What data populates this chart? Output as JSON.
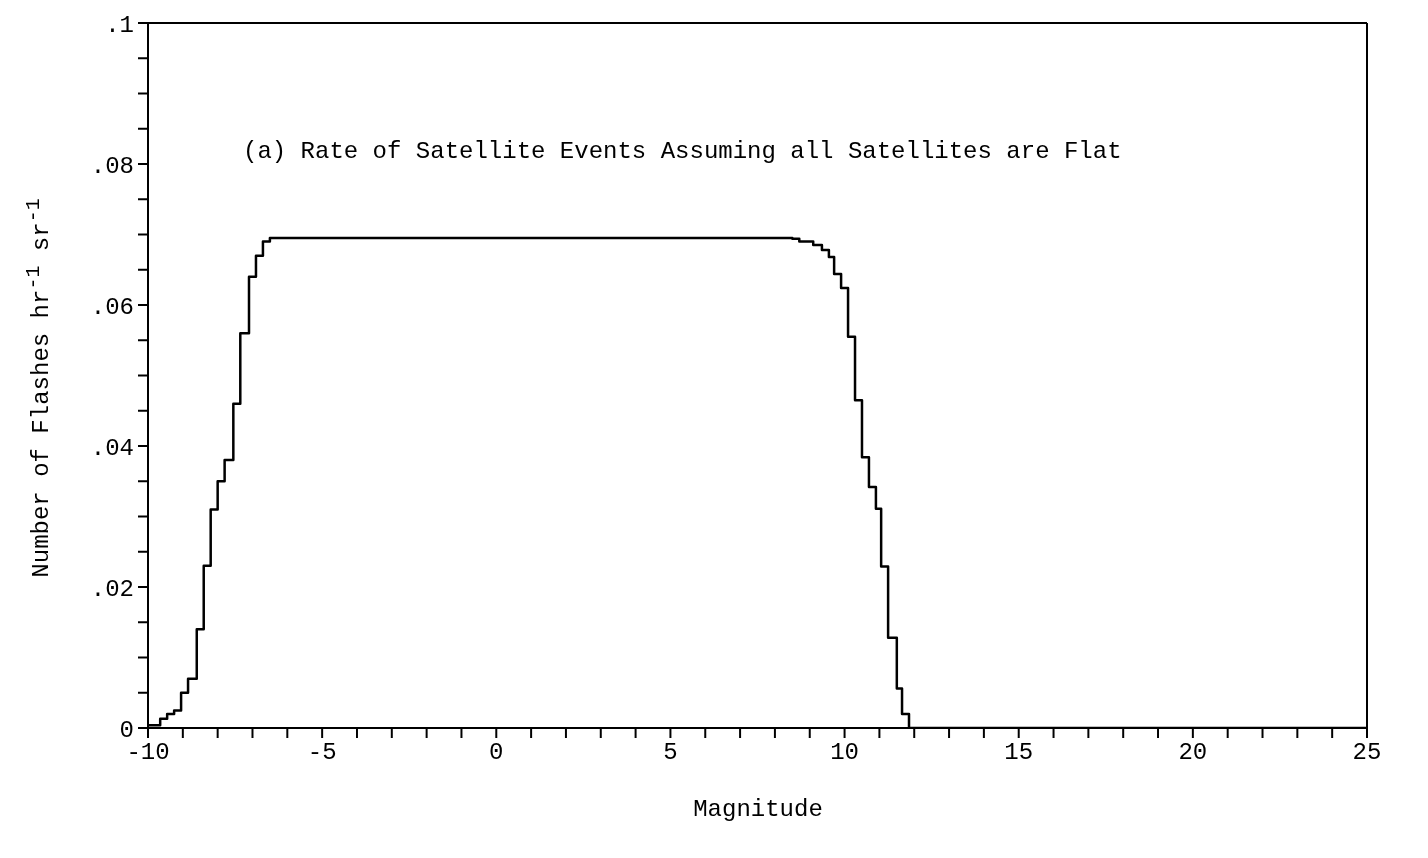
{
  "chart_data": {
    "type": "step",
    "title": "(a) Rate of Satellite Events Assuming all Satellites are Flat",
    "xlabel": "Magnitude",
    "ylabel": "Number of Flashes hr$^{-1}$ sr$^{-1}$",
    "x": [
      -10,
      -9.65,
      -9.45,
      -9.25,
      -9.05,
      -8.85,
      -8.6,
      -8.4,
      -8.2,
      -8.0,
      -7.8,
      -7.55,
      -7.35,
      -7.1,
      -6.9,
      -6.7,
      -6.5,
      8.5,
      8.7,
      9.1,
      9.35,
      9.55,
      9.7,
      9.9,
      10.1,
      10.3,
      10.5,
      10.7,
      10.9,
      11.05,
      11.25,
      11.5,
      11.65,
      11.85,
      25
    ],
    "values": [
      0.0004,
      0.0013,
      0.002,
      0.0025,
      0.005,
      0.007,
      0.014,
      0.023,
      0.031,
      0.035,
      0.038,
      0.046,
      0.056,
      0.064,
      0.067,
      0.069,
      0.0695,
      0.0694,
      0.069,
      0.0685,
      0.0678,
      0.0668,
      0.0644,
      0.0624,
      0.0555,
      0.0465,
      0.0384,
      0.0342,
      0.0311,
      0.0229,
      0.0128,
      0.0056,
      0.002,
      0,
      0
    ],
    "color": "#000000",
    "xlim": [
      -10,
      25
    ],
    "xticks": [
      -10,
      {
        "value": -9,
        "label": null
      },
      {
        "value": -8,
        "label": null
      },
      {
        "value": -7,
        "label": null
      },
      {
        "value": -6,
        "label": null
      },
      -5,
      {
        "value": -4,
        "label": null
      },
      {
        "value": -3,
        "label": null
      },
      {
        "value": -2,
        "label": null
      },
      {
        "value": -1,
        "label": null
      },
      0,
      {
        "value": 1,
        "label": null
      },
      {
        "value": 2,
        "label": null
      },
      {
        "value": 3,
        "label": null
      },
      {
        "value": 4,
        "label": null
      },
      5,
      {
        "value": 6,
        "label": null
      },
      {
        "value": 7,
        "label": null
      },
      {
        "value": 8,
        "label": null
      },
      {
        "value": 9,
        "label": null
      },
      10,
      {
        "value": 11,
        "label": null
      },
      {
        "value": 12,
        "label": null
      },
      {
        "value": 13,
        "label": null
      },
      {
        "value": 14,
        "label": null
      },
      15,
      {
        "value": 16,
        "label": null
      },
      {
        "value": 17,
        "label": null
      },
      {
        "value": 18,
        "label": null
      },
      {
        "value": 19,
        "label": null
      },
      20,
      {
        "value": 21,
        "label": null
      },
      {
        "value": 22,
        "label": null
      },
      {
        "value": 23,
        "label": null
      },
      {
        "value": 24,
        "label": null
      },
      25
    ],
    "ylim": [
      0,
      0.1
    ],
    "yticks": [
      0,
      {
        "value": 0.005,
        "label": null
      },
      {
        "value": 0.01,
        "label": null
      },
      {
        "value": 0.015,
        "label": null
      },
      {
        "value": 0.02,
        "label": ".02"
      },
      {
        "value": 0.025,
        "label": null
      },
      {
        "value": 0.03,
        "label": null
      },
      {
        "value": 0.035,
        "label": null
      },
      {
        "value": 0.04,
        "label": ".04"
      },
      {
        "value": 0.045,
        "label": null
      },
      {
        "value": 0.05,
        "label": null
      },
      {
        "value": 0.055,
        "label": null
      },
      {
        "value": 0.06,
        "label": ".06"
      },
      {
        "value": 0.065,
        "label": null
      },
      {
        "value": 0.07,
        "label": null
      },
      {
        "value": 0.075,
        "label": null
      },
      {
        "value": 0.08,
        "label": ".08"
      },
      {
        "value": 0.085,
        "label": null
      },
      {
        "value": 0.09,
        "label": null
      },
      {
        "value": 0.095,
        "label": null
      },
      {
        "value": 0.1,
        "label": ".1"
      }
    ]
  }
}
